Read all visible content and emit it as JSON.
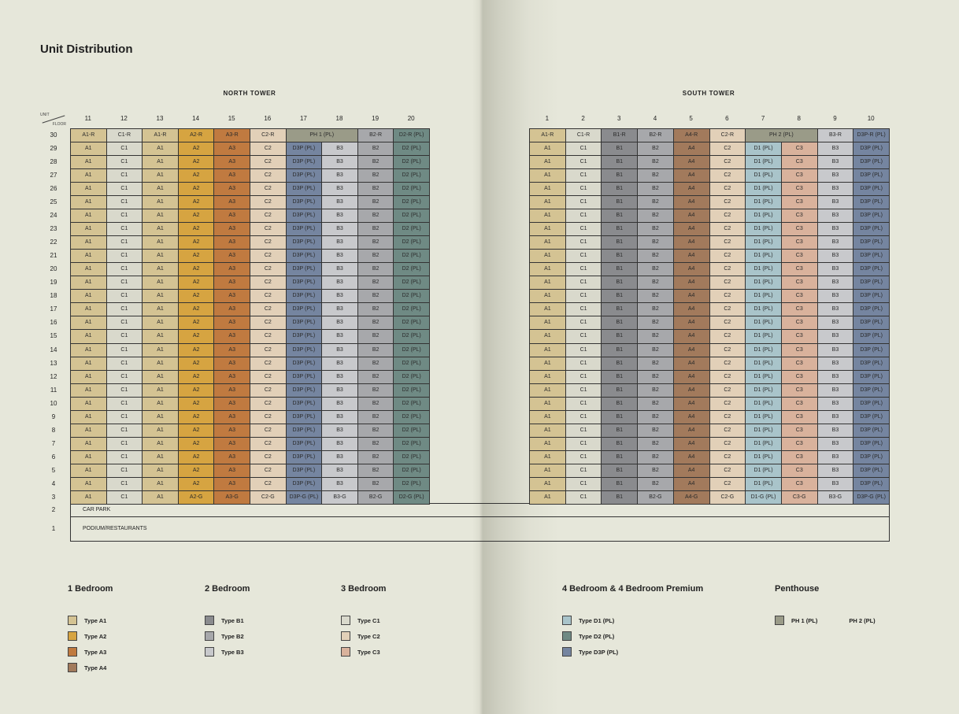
{
  "title": "Unit Distribution",
  "unit_label": "UNIT",
  "floor_label": "FLOOR",
  "colors": {
    "A1": "#d4c393",
    "A2": "#d6a441",
    "A3": "#c07a40",
    "A4": "#a27a5c",
    "B1": "#8a8b8e",
    "B2": "#a7a8ab",
    "B3": "#c8c9cc",
    "C1": "#d9d9cc",
    "C2": "#e2d0b8",
    "C3": "#d9b29c",
    "D1": "#a9c4ca",
    "D2": "#6f8a84",
    "D3P": "#7585a0",
    "PH": "#9a9b88"
  },
  "floors": [
    "30",
    "29",
    "28",
    "27",
    "26",
    "25",
    "24",
    "23",
    "22",
    "21",
    "20",
    "19",
    "18",
    "17",
    "16",
    "15",
    "14",
    "13",
    "12",
    "11",
    "10",
    "9",
    "8",
    "7",
    "6",
    "5",
    "4",
    "3"
  ],
  "north": {
    "name": "NORTH TOWER",
    "units": [
      "11",
      "12",
      "13",
      "14",
      "15",
      "16",
      "17",
      "18",
      "19",
      "20"
    ],
    "top": [
      {
        "l": "A1-R"
      },
      {
        "l": "C1-R"
      },
      {
        "l": "A1-R"
      },
      {
        "l": "A2-R"
      },
      {
        "l": "A3-R"
      },
      {
        "l": "C2-R"
      },
      {
        "l": "PH 1 (PL)",
        "span": 2
      },
      {
        "l": "B2-R"
      },
      {
        "l": "D2-R (PL)"
      }
    ],
    "typical": [
      "A1",
      "C1",
      "A1",
      "A2",
      "A3",
      "C2",
      "D3P (PL)",
      "B3",
      "B2",
      "D2 (PL)"
    ],
    "ground": [
      "A1",
      "C1",
      "A1",
      "A2-G",
      "A3-G",
      "C2-G",
      "D3P-G (PL)",
      "B3-G",
      "B2-G",
      "D2-G (PL)"
    ]
  },
  "south": {
    "name": "SOUTH TOWER",
    "units": [
      "1",
      "2",
      "3",
      "4",
      "5",
      "6",
      "7",
      "8",
      "9",
      "10"
    ],
    "top": [
      {
        "l": "A1-R"
      },
      {
        "l": "C1-R"
      },
      {
        "l": "B1-R"
      },
      {
        "l": "B2-R"
      },
      {
        "l": "A4-R"
      },
      {
        "l": "C2-R"
      },
      {
        "l": "PH 2 (PL)",
        "span": 2
      },
      {
        "l": "B3-R"
      },
      {
        "l": "D3P-R (PL)"
      }
    ],
    "typical": [
      "A1",
      "C1",
      "B1",
      "B2",
      "A4",
      "C2",
      "D1 (PL)",
      "C3",
      "B3",
      "D3P (PL)"
    ],
    "ground": [
      "A1",
      "C1",
      "B1",
      "B2-G",
      "A4-G",
      "C2-G",
      "D1-G (PL)",
      "C3-G",
      "B3-G",
      "D3P-G (PL)"
    ]
  },
  "base": {
    "floor2": "2",
    "floor2_label": "CAR PARK",
    "floor1": "1",
    "floor1_label": "PODIUM/RESTAURANTS"
  },
  "legend": [
    {
      "heading": "1 Bedroom",
      "items": [
        {
          "label": "Type A1",
          "type": "A1"
        },
        {
          "label": "Type A2",
          "type": "A2"
        },
        {
          "label": "Type A3",
          "type": "A3"
        },
        {
          "label": "Type A4",
          "type": "A4"
        }
      ]
    },
    {
      "heading": "2 Bedroom",
      "items": [
        {
          "label": "Type B1",
          "type": "B1"
        },
        {
          "label": "Type B2",
          "type": "B2"
        },
        {
          "label": "Type B3",
          "type": "B3"
        }
      ]
    },
    {
      "heading": "3 Bedroom",
      "items": [
        {
          "label": "Type C1",
          "type": "C1"
        },
        {
          "label": "Type C2",
          "type": "C2"
        },
        {
          "label": "Type C3",
          "type": "C3"
        }
      ]
    },
    {
      "heading": "4 Bedroom & 4 Bedroom Premium",
      "items": [
        {
          "label": "Type D1 (PL)",
          "type": "D1"
        },
        {
          "label": "Type D2 (PL)",
          "type": "D2"
        },
        {
          "label": "Type D3P (PL)",
          "type": "D3P"
        }
      ]
    },
    {
      "heading": "Penthouse",
      "items": [
        {
          "label": "PH 1 (PL)",
          "type": "PH"
        },
        {
          "label": "PH 2 (PL)",
          "type": null
        }
      ]
    }
  ]
}
